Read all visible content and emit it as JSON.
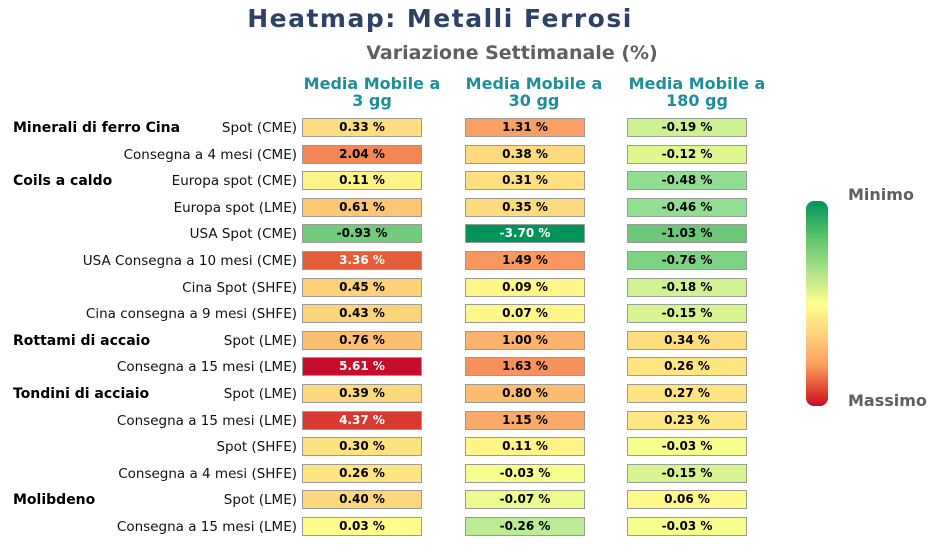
{
  "chart_data": {
    "type": "heatmap",
    "title": "Heatmap: Metalli Ferrosi",
    "subtitle": "Variazione Settimanale (%)",
    "columns": [
      {
        "line1": "Media Mobile a",
        "line2": "3 gg"
      },
      {
        "line1": "Media Mobile a",
        "line2": "30 gg"
      },
      {
        "line1": "Media Mobile a",
        "line2": "180 gg"
      }
    ],
    "groups": [
      {
        "label": "Minerali di ferro Cina",
        "row": 0
      },
      {
        "label": "Coils a caldo",
        "row": 2
      },
      {
        "label": "Rottami di accaio",
        "row": 8
      },
      {
        "label": "Tondini di acciaio",
        "row": 10
      },
      {
        "label": "Molibdeno",
        "row": 14
      }
    ],
    "rows": [
      {
        "label": "Spot (CME)",
        "values": [
          0.33,
          1.31,
          -0.19
        ]
      },
      {
        "label": "Consegna a 4 mesi (CME)",
        "values": [
          2.04,
          0.38,
          -0.12
        ]
      },
      {
        "label": "Europa spot (CME)",
        "values": [
          0.11,
          0.31,
          -0.48
        ]
      },
      {
        "label": "Europa spot (LME)",
        "values": [
          0.61,
          0.35,
          -0.46
        ]
      },
      {
        "label": "USA Spot (CME)",
        "values": [
          -0.93,
          -3.7,
          -1.03
        ]
      },
      {
        "label": "USA Consegna a 10 mesi (CME)",
        "values": [
          3.36,
          1.49,
          -0.76
        ]
      },
      {
        "label": "Cina Spot (SHFE)",
        "values": [
          0.45,
          0.09,
          -0.18
        ]
      },
      {
        "label": "Cina consegna a 9 mesi (SHFE)",
        "values": [
          0.43,
          0.07,
          -0.15
        ]
      },
      {
        "label": "Spot (LME)",
        "values": [
          0.76,
          1.0,
          0.34
        ]
      },
      {
        "label": "Consegna a 15 mesi (LME)",
        "values": [
          5.61,
          1.63,
          0.26
        ]
      },
      {
        "label": "Spot (LME)",
        "values": [
          0.39,
          0.8,
          0.27
        ]
      },
      {
        "label": "Consegna a 15 mesi (LME)",
        "values": [
          4.37,
          1.15,
          0.23
        ]
      },
      {
        "label": "Spot (SHFE)",
        "values": [
          0.3,
          0.11,
          -0.03
        ]
      },
      {
        "label": "Consegna a 4 mesi (SHFE)",
        "values": [
          0.26,
          -0.03,
          -0.15
        ]
      },
      {
        "label": "Spot (LME)",
        "values": [
          0.4,
          -0.07,
          0.06
        ]
      },
      {
        "label": "Consegna a 15 mesi (LME)",
        "values": [
          0.03,
          -0.26,
          -0.03
        ]
      }
    ],
    "value_suffix": " %",
    "colorscale": {
      "top_label": "Minimo",
      "bottom_label": "Massimo",
      "colors": [
        "#00935a",
        "#b2e38a",
        "#ffff8c",
        "#fb9e5d",
        "#c80a2b"
      ]
    }
  }
}
